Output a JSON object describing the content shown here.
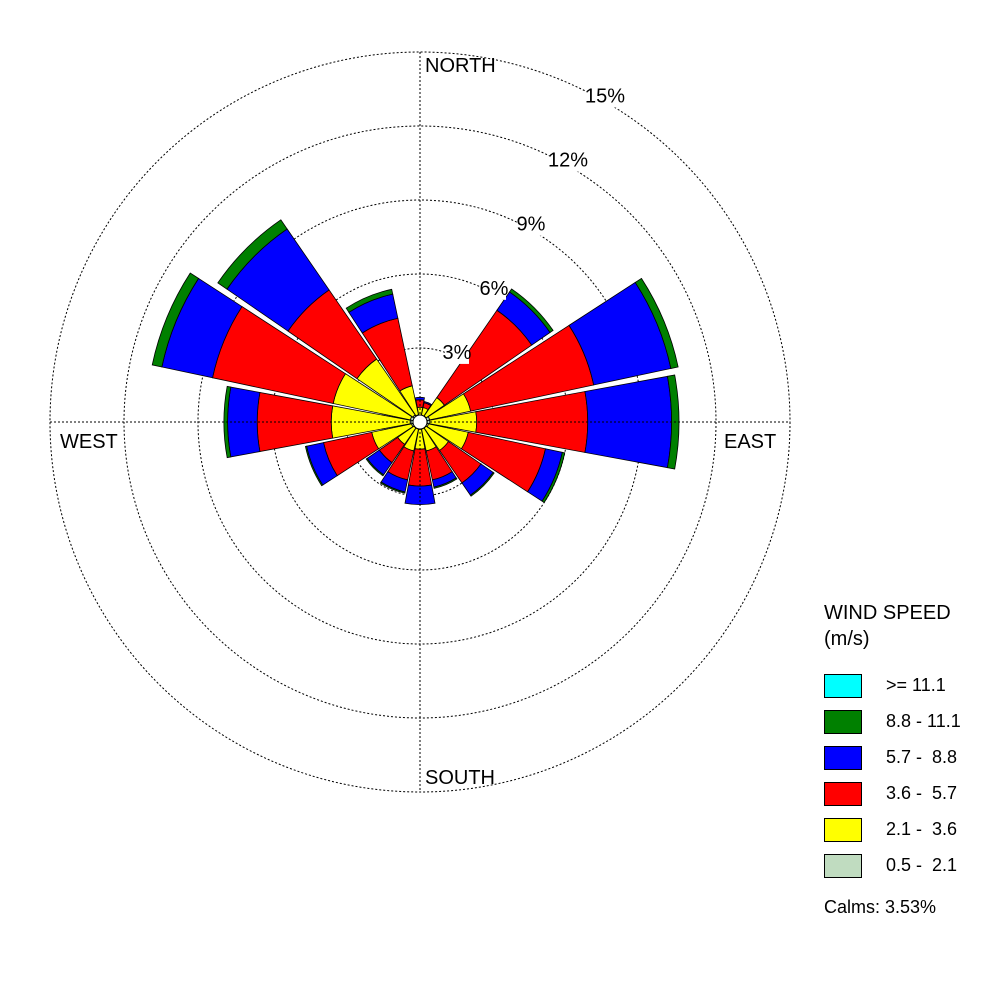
{
  "chart_data": {
    "type": "windrose",
    "title": "",
    "directions": [
      "N",
      "NNE",
      "NE",
      "ENE",
      "E",
      "ESE",
      "SE",
      "SSE",
      "S",
      "SSW",
      "SW",
      "WSW",
      "W",
      "WNW",
      "NW",
      "NNW"
    ],
    "direction_labels": {
      "north": "NORTH",
      "east": "EAST",
      "south": "SOUTH",
      "west": "WEST"
    },
    "rings": [
      3,
      6,
      9,
      12,
      15
    ],
    "ring_labels": [
      "3%",
      "6%",
      "9%",
      "12%",
      "15%"
    ],
    "rmax": 15,
    "unit": "%",
    "speed_bins": [
      {
        "label": "0.5 -  2.1",
        "color": "#c0dcc0"
      },
      {
        "label": "2.1 -  3.6",
        "color": "#ffff00"
      },
      {
        "label": "3.6 -  5.7",
        "color": "#ff0000"
      },
      {
        "label": "5.7 -  8.8",
        "color": "#0000ff"
      },
      {
        "label": "8.8 - 11.1",
        "color": "#008000"
      },
      {
        "label": ">= 11.1",
        "color": "#00ffff"
      }
    ],
    "series": [
      {
        "direction": "N",
        "cumulative": [
          0.25,
          0.6,
          0.9,
          1.0,
          1.0,
          1.0
        ]
      },
      {
        "direction": "NNE",
        "cumulative": [
          0.25,
          0.6,
          0.8,
          0.85,
          0.85,
          0.85
        ]
      },
      {
        "direction": "NE",
        "cumulative": [
          0.3,
          1.2,
          5.5,
          6.4,
          6.55,
          6.55
        ]
      },
      {
        "direction": "ENE",
        "cumulative": [
          0.4,
          2.1,
          7.2,
          10.4,
          10.7,
          10.7
        ]
      },
      {
        "direction": "E",
        "cumulative": [
          0.4,
          2.3,
          6.8,
          10.2,
          10.5,
          10.5
        ]
      },
      {
        "direction": "ESE",
        "cumulative": [
          0.35,
          2.0,
          5.2,
          5.9,
          6.0,
          6.0
        ]
      },
      {
        "direction": "SE",
        "cumulative": [
          0.3,
          1.4,
          3.0,
          3.6,
          3.65,
          3.65
        ]
      },
      {
        "direction": "SSE",
        "cumulative": [
          0.3,
          1.2,
          2.4,
          2.7,
          2.75,
          2.75
        ]
      },
      {
        "direction": "S",
        "cumulative": [
          0.3,
          1.1,
          2.6,
          3.35,
          3.35,
          3.35
        ]
      },
      {
        "direction": "SSW",
        "cumulative": [
          0.3,
          1.2,
          2.4,
          2.9,
          2.95,
          2.95
        ]
      },
      {
        "direction": "SW",
        "cumulative": [
          0.3,
          1.1,
          2.0,
          2.6,
          2.65,
          2.65
        ]
      },
      {
        "direction": "WSW",
        "cumulative": [
          0.35,
          2.0,
          4.0,
          4.7,
          4.75,
          4.75
        ]
      },
      {
        "direction": "W",
        "cumulative": [
          0.4,
          3.6,
          6.6,
          7.8,
          7.95,
          7.95
        ]
      },
      {
        "direction": "WNW",
        "cumulative": [
          0.4,
          3.6,
          8.6,
          10.7,
          11.1,
          11.1
        ]
      },
      {
        "direction": "NW",
        "cumulative": [
          0.35,
          3.1,
          6.5,
          9.5,
          9.95,
          9.95
        ]
      },
      {
        "direction": "NNW",
        "cumulative": [
          0.3,
          1.5,
          4.3,
          5.3,
          5.5,
          5.5
        ]
      }
    ]
  },
  "legend": {
    "title_line1": "WIND SPEED",
    "title_line2": "(m/s)",
    "items": [
      {
        "label": ">= 11.1",
        "color": "#00ffff"
      },
      {
        "label": "8.8 - 11.1",
        "color": "#008000"
      },
      {
        "label": "5.7 -  8.8",
        "color": "#0000ff"
      },
      {
        "label": "3.6 -  5.7",
        "color": "#ff0000"
      },
      {
        "label": "2.1 -  3.6",
        "color": "#ffff00"
      },
      {
        "label": "0.5 -  2.1",
        "color": "#c0dcc0"
      }
    ],
    "calms": "Calms: 3.53%"
  }
}
